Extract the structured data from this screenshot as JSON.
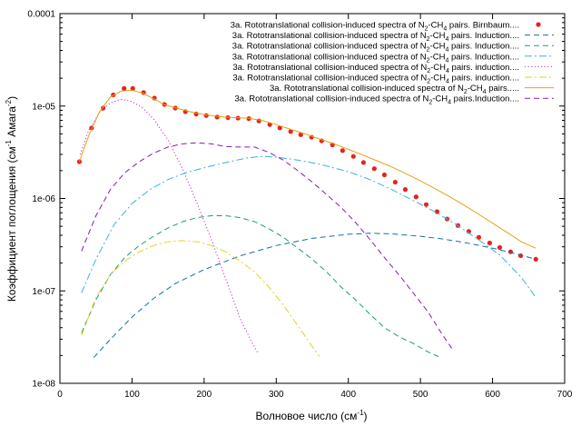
{
  "chart_data": {
    "type": "line",
    "xlabel": "Волновое число (см",
    "xlabel_sup": "-1",
    "xlabel_end": ")",
    "ylabel": "Коэффициент поглощения (см",
    "ylabel_sup1": "-1",
    "ylabel_mid": " Амага",
    "ylabel_sup2": "-2",
    "ylabel_end": ")",
    "x_scale": "linear",
    "y_scale": "log",
    "xlim": [
      0,
      700
    ],
    "ylim": [
      1e-08,
      0.0001
    ],
    "x_ticks": [
      0,
      100,
      200,
      300,
      400,
      500,
      600,
      700
    ],
    "x_tick_labels": [
      "0",
      "100",
      "200",
      "300",
      "400",
      "500",
      "600",
      "700"
    ],
    "y_ticks": [
      1e-08,
      1e-07,
      1e-06,
      1e-05,
      0.0001
    ],
    "y_tick_labels": [
      "1e-08",
      "1e-07",
      "1e-06",
      "1e-05",
      "0.0001"
    ],
    "legend_placement": "top-right",
    "series": [
      {
        "name_pre": "3a. Rototranslational collision-induced spectra of N",
        "name_sub1": "2",
        "name_mid": "-CH",
        "name_sub2": "4",
        "name_post": " pairs. Birnbaum....",
        "style": "points",
        "color": "#e8221c",
        "x": [
          27,
          44,
          60,
          74,
          89,
          101,
          116,
          131,
          145,
          160,
          174,
          189,
          203,
          218,
          233,
          247,
          262,
          276,
          291,
          305,
          320,
          334,
          349,
          363,
          378,
          392,
          407,
          421,
          436,
          450,
          465,
          479,
          494,
          508,
          523,
          537,
          552,
          567,
          581,
          596,
          610,
          625,
          639,
          660
        ],
        "y": [
          2.5e-06,
          5.8e-06,
          9.5e-06,
          1.32e-05,
          1.55e-05,
          1.55e-05,
          1.4e-05,
          1.22e-05,
          1.04e-05,
          9.5e-06,
          8.7e-06,
          8.2e-06,
          7.9e-06,
          7.6e-06,
          7.5e-06,
          7.4e-06,
          7.3e-06,
          6.9e-06,
          6.3e-06,
          5.8e-06,
          5.3e-06,
          4.9e-06,
          4.6e-06,
          4.2e-06,
          3.8e-06,
          3.3e-06,
          2.85e-06,
          2.45e-06,
          2.1e-06,
          1.8e-06,
          1.5e-06,
          1.25e-06,
          1.04e-06,
          8.6e-07,
          7.2e-07,
          6e-07,
          5.1e-07,
          4.4e-07,
          3.8e-07,
          3.3e-07,
          2.95e-07,
          2.65e-07,
          2.4e-07,
          2.2e-07
        ]
      },
      {
        "name_pre": "3a. Rototranslational collision-induced spectra of N",
        "name_sub1": "2",
        "name_mid": "-CH",
        "name_sub2": "4",
        "name_post": " pairs. Induction....",
        "style": "dash",
        "color": "#0f6fa8",
        "x": [
          47,
          70,
          100,
          130,
          160,
          200,
          250,
          300,
          350,
          400,
          430,
          460,
          500,
          530,
          560,
          600,
          630,
          660
        ],
        "y": [
          1.9e-08,
          3e-08,
          5.2e-08,
          8.3e-08,
          1.2e-07,
          1.7e-07,
          2.4e-07,
          3.1e-07,
          3.7e-07,
          4.1e-07,
          4.2e-07,
          4.15e-07,
          3.9e-07,
          3.65e-07,
          3.35e-07,
          2.9e-07,
          2.55e-07,
          2.2e-07
        ]
      },
      {
        "name_pre": "3a. Rototranslational collision-induced spectra of N",
        "name_sub1": "2",
        "name_mid": "-CH",
        "name_sub2": "4",
        "name_post": " pairs. Induction....",
        "style": "dash",
        "color": "#1a9a7a",
        "x": [
          30,
          50,
          70,
          90,
          110,
          130,
          150,
          170,
          190,
          210,
          230,
          250,
          270,
          290,
          310,
          330,
          350,
          370,
          390,
          410,
          430,
          450,
          470,
          490,
          510,
          525
        ],
        "y": [
          3.5e-08,
          8e-08,
          1.5e-07,
          2.3e-07,
          3.1e-07,
          3.9e-07,
          4.8e-07,
          5.6e-07,
          6.2e-07,
          6.5e-07,
          6.5e-07,
          6.2e-07,
          5.6e-07,
          4.7e-07,
          3.8e-07,
          2.9e-07,
          2.2e-07,
          1.6e-07,
          1.1e-07,
          8e-08,
          5.6e-08,
          4e-08,
          3.2e-08,
          2.7e-08,
          2.2e-08,
          1.95e-08
        ]
      },
      {
        "name_pre": "3a. Rototranslational collision-induced spectra of N",
        "name_sub1": "2",
        "name_mid": "-CH",
        "name_sub2": "4",
        "name_post": " pairs. Induction....",
        "style": "dashdot",
        "color": "#36b4e0",
        "x": [
          30,
          50,
          75,
          100,
          125,
          150,
          175,
          200,
          230,
          260,
          280,
          300,
          330,
          360,
          400,
          430,
          460,
          490,
          520,
          550,
          580,
          610,
          640,
          660
        ],
        "y": [
          9.5e-08,
          2.2e-07,
          5.2e-07,
          8.8e-07,
          1.25e-06,
          1.6e-06,
          1.9e-06,
          2.15e-06,
          2.45e-06,
          2.75e-06,
          2.85e-06,
          2.8e-06,
          2.6e-06,
          2.35e-06,
          1.95e-06,
          1.6e-06,
          1.25e-06,
          9.5e-07,
          7.2e-07,
          5.2e-07,
          3.6e-07,
          2.45e-07,
          1.4e-07,
          8.5e-08
        ]
      },
      {
        "name_pre": "3a. Rototranslational collision-induced spectra of N",
        "name_sub1": "2",
        "name_mid": "-CH",
        "name_sub2": "4",
        "name_post": " pairs. induction....",
        "style": "dot",
        "color": "#c02bc4",
        "x": [
          28,
          40,
          55,
          70,
          85,
          100,
          115,
          130,
          150,
          170,
          190,
          210,
          230,
          250,
          265,
          275
        ],
        "y": [
          3e-06,
          5.5e-06,
          8.5e-06,
          1.08e-05,
          1.18e-05,
          1.12e-05,
          9.5e-06,
          7.2e-06,
          4.3e-06,
          2.1e-06,
          9e-07,
          3.6e-07,
          1.35e-07,
          5e-08,
          2.9e-08,
          2.1e-08
        ]
      },
      {
        "name_pre": "3a. Rototranslational collision-induced spectra of N",
        "name_sub1": "2",
        "name_mid": "-CH",
        "name_sub2": "4",
        "name_post": " pairs. induction....",
        "style": "dashdot",
        "color": "#e6d21f",
        "x": [
          30,
          50,
          70,
          90,
          110,
          130,
          150,
          170,
          190,
          210,
          230,
          250,
          270,
          290,
          310,
          330,
          350,
          360
        ],
        "y": [
          3.3e-08,
          8.5e-08,
          1.5e-07,
          2.1e-07,
          2.65e-07,
          3.1e-07,
          3.4e-07,
          3.5e-07,
          3.4e-07,
          3.1e-07,
          2.65e-07,
          2.1e-07,
          1.6e-07,
          1.1e-07,
          7e-08,
          4.2e-08,
          2.5e-08,
          1.95e-08
        ]
      },
      {
        "name_pre": "3a. Rototranslational collision-induced spectra of N",
        "name_sub1": "2",
        "name_mid": "-CH",
        "name_sub2": "4",
        "name_post": " pairs.....",
        "style": "solid",
        "color": "#e8a012",
        "x": [
          27,
          40,
          55,
          70,
          85,
          100,
          115,
          130,
          145,
          160,
          180,
          200,
          220,
          240,
          260,
          280,
          300,
          320,
          340,
          360,
          380,
          400,
          420,
          440,
          460,
          480,
          500,
          520,
          540,
          560,
          580,
          600,
          620,
          640,
          660
        ],
        "y": [
          2.5e-06,
          4.8e-06,
          8.7e-06,
          1.25e-05,
          1.45e-05,
          1.48e-05,
          1.38e-05,
          1.2e-05,
          1.03e-05,
          9.6e-06,
          8.7e-06,
          8.1e-06,
          7.7e-06,
          7.5e-06,
          7.4e-06,
          7e-06,
          6.3e-06,
          5.6e-06,
          5e-06,
          4.4e-06,
          3.9e-06,
          3.4e-06,
          2.95e-06,
          2.55e-06,
          2.2e-06,
          1.85e-06,
          1.55e-06,
          1.28e-06,
          1.05e-06,
          8.5e-07,
          6.8e-07,
          5.4e-07,
          4.3e-07,
          3.4e-07,
          2.9e-07
        ]
      },
      {
        "name_pre": "3a. Rototranslational collision-induced spectra of N",
        "name_sub1": "2",
        "name_mid": "-CH",
        "name_sub2": "4",
        "name_post": " pairs.Induction....",
        "style": "dash",
        "color": "#8a18b8",
        "x": [
          30,
          50,
          70,
          90,
          110,
          130,
          150,
          170,
          190,
          210,
          230,
          250,
          270,
          290,
          310,
          330,
          350,
          370,
          390,
          410,
          430,
          450,
          470,
          490,
          510,
          530,
          545
        ],
        "y": [
          2.7e-07,
          6.5e-07,
          1.25e-06,
          1.9e-06,
          2.5e-06,
          3.1e-06,
          3.6e-06,
          3.9e-06,
          4e-06,
          3.9e-06,
          3.65e-06,
          3.6e-06,
          3.6e-06,
          3.15e-06,
          2.6e-06,
          2e-06,
          1.5e-06,
          1.1e-06,
          8e-07,
          5.5e-07,
          3.6e-07,
          2.3e-07,
          1.5e-07,
          9.5e-08,
          6e-08,
          3.4e-08,
          2.3e-08
        ]
      }
    ]
  }
}
